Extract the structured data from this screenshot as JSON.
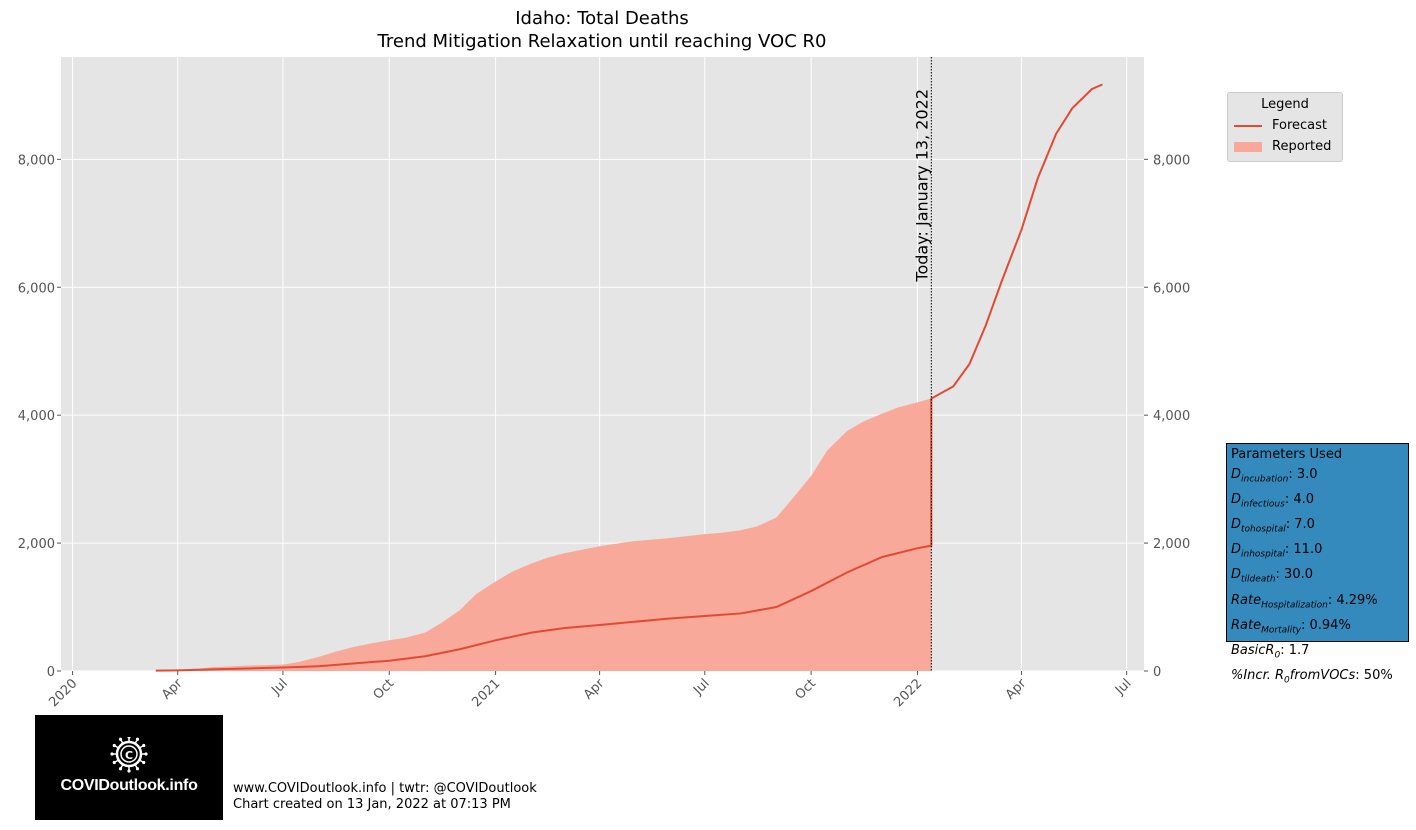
{
  "chart_data": {
    "type": "area",
    "title": "Idaho: Total Deaths",
    "subtitle": "Trend Mitigation Relaxation until reaching VOC R0",
    "x_range": [
      "2019-12-22",
      "2022-07-16"
    ],
    "ylim": [
      0,
      9600
    ],
    "y_ticks": [
      0,
      2000,
      4000,
      6000,
      8000
    ],
    "y_tick_labels": [
      "0",
      "2,000",
      "4,000",
      "6,000",
      "8,000"
    ],
    "x_ticks": [
      "2020-01-01",
      "2020-04-01",
      "2020-07-01",
      "2020-10-01",
      "2021-01-01",
      "2021-04-01",
      "2021-07-01",
      "2021-10-01",
      "2022-01-01",
      "2022-04-01",
      "2022-07-01"
    ],
    "x_tick_labels": [
      "2020",
      "Apr",
      "Jul",
      "Oct",
      "2021",
      "Apr",
      "Jul",
      "Oct",
      "2022",
      "Apr",
      "Jul"
    ],
    "grid": true,
    "legend_position": "outside-top-right",
    "today_line": {
      "date": "2022-01-13",
      "label": "Today: January 13, 2022"
    },
    "series": [
      {
        "name": "Reported",
        "kind": "filled-area",
        "color": "#F9A99A",
        "x": [
          "2020-03-13",
          "2020-04-01",
          "2020-04-15",
          "2020-05-01",
          "2020-06-01",
          "2020-07-01",
          "2020-07-15",
          "2020-08-01",
          "2020-08-15",
          "2020-09-01",
          "2020-09-15",
          "2020-10-01",
          "2020-10-15",
          "2020-11-01",
          "2020-11-15",
          "2020-12-01",
          "2020-12-15",
          "2021-01-01",
          "2021-01-15",
          "2021-02-01",
          "2021-02-15",
          "2021-03-01",
          "2021-03-15",
          "2021-04-01",
          "2021-04-15",
          "2021-05-01",
          "2021-06-01",
          "2021-07-01",
          "2021-07-15",
          "2021-08-01",
          "2021-08-15",
          "2021-09-01",
          "2021-09-15",
          "2021-10-01",
          "2021-10-15",
          "2021-11-01",
          "2021-11-15",
          "2021-12-01",
          "2021-12-15",
          "2022-01-01",
          "2022-01-13"
        ],
        "y": [
          5,
          15,
          30,
          60,
          85,
          100,
          140,
          220,
          300,
          380,
          430,
          480,
          520,
          600,
          750,
          950,
          1200,
          1400,
          1550,
          1680,
          1770,
          1840,
          1890,
          1950,
          1990,
          2030,
          2080,
          2140,
          2160,
          2200,
          2260,
          2400,
          2700,
          3050,
          3450,
          3750,
          3900,
          4020,
          4120,
          4200,
          4260
        ]
      },
      {
        "name": "Forecast",
        "kind": "line",
        "color": "#E24A33",
        "x": [
          "2020-03-13",
          "2020-04-01",
          "2020-05-01",
          "2020-06-01",
          "2020-07-01",
          "2020-08-01",
          "2020-09-01",
          "2020-10-01",
          "2020-11-01",
          "2020-12-01",
          "2021-01-01",
          "2021-02-01",
          "2021-03-01",
          "2021-04-01",
          "2021-05-01",
          "2021-06-01",
          "2021-07-01",
          "2021-08-01",
          "2021-09-01",
          "2021-10-01",
          "2021-11-01",
          "2021-12-01",
          "2022-01-01",
          "2022-01-13",
          "2022-01-13",
          "2022-02-01",
          "2022-02-15",
          "2022-03-01",
          "2022-03-15",
          "2022-04-01",
          "2022-04-15",
          "2022-05-01",
          "2022-05-15",
          "2022-06-01",
          "2022-06-10"
        ],
        "y": [
          5,
          10,
          25,
          40,
          55,
          75,
          120,
          160,
          230,
          340,
          480,
          600,
          670,
          720,
          770,
          820,
          860,
          900,
          1000,
          1250,
          1540,
          1780,
          1920,
          1960,
          4260,
          4450,
          4800,
          5400,
          6100,
          6900,
          7700,
          8400,
          8800,
          9100,
          9170
        ]
      }
    ]
  },
  "legend": {
    "title": "Legend",
    "items": [
      {
        "label": "Forecast"
      },
      {
        "label": "Reported"
      }
    ]
  },
  "parameters": {
    "title": "Parameters Used",
    "rows": [
      {
        "base": "D",
        "sub": "incubation",
        "value": "3.0"
      },
      {
        "base": "D",
        "sub": "infectious",
        "value": "4.0"
      },
      {
        "base": "D",
        "sub": "tohospital",
        "value": "7.0"
      },
      {
        "base": "D",
        "sub": "inhospital",
        "value": "11.0"
      },
      {
        "base": "D",
        "sub": "tildeath",
        "value": "30.0"
      },
      {
        "base": "Rate",
        "sub": "Hospitalization",
        "value": "4.29%"
      },
      {
        "base": "Rate",
        "sub": "Mortality",
        "value": "0.94%"
      },
      {
        "base": "BasicR",
        "sub": "0",
        "value": "1.7"
      },
      {
        "base": "%Incr. R",
        "sub": "0",
        "tail": "fromVOCs",
        "value": "50%"
      }
    ]
  },
  "logo": {
    "text": "COVIDoutlook.info"
  },
  "footer": {
    "line1": "www.COVIDoutlook.info | twtr: @COVIDoutlook",
    "line2": "Chart created on 13 Jan, 2022 at 07:13 PM"
  }
}
